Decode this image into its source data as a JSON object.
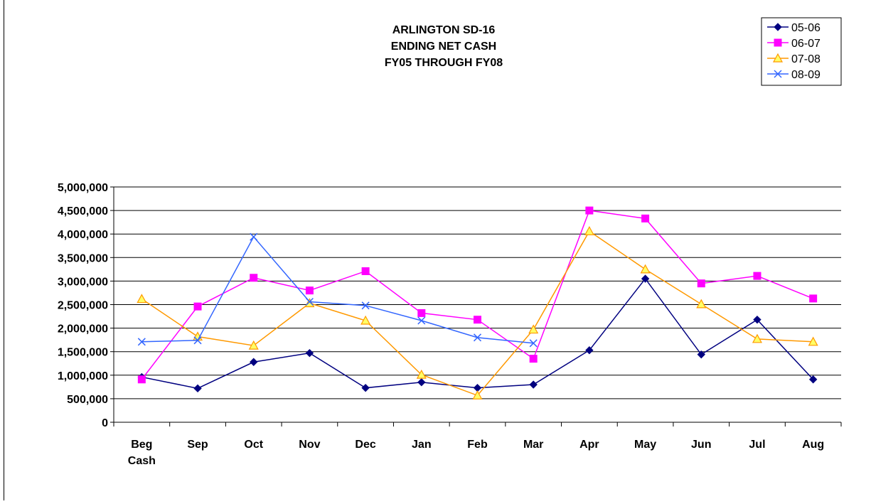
{
  "chart_data": {
    "type": "line",
    "title_lines": [
      "ARLINGTON SD-16",
      "ENDING NET CASH",
      "FY05 THROUGH FY08"
    ],
    "categories": [
      "Beg Cash",
      "Sep",
      "Oct",
      "Nov",
      "Dec",
      "Jan",
      "Feb",
      "Mar",
      "Apr",
      "May",
      "Jun",
      "Jul",
      "Aug"
    ],
    "series": [
      {
        "name": "05-06",
        "color": "#000080",
        "marker": "diamond",
        "values": [
          960000,
          720000,
          1280000,
          1470000,
          730000,
          850000,
          730000,
          800000,
          1530000,
          3050000,
          1440000,
          2180000,
          910000
        ]
      },
      {
        "name": "06-07",
        "color": "#ff00ff",
        "marker": "square",
        "values": [
          910000,
          2460000,
          3070000,
          2800000,
          3210000,
          2320000,
          2180000,
          1350000,
          4500000,
          4330000,
          2950000,
          3110000,
          2630000
        ]
      },
      {
        "name": "07-08",
        "color": "#ff9900",
        "marker": "triangle",
        "values": [
          2620000,
          1820000,
          1630000,
          2530000,
          2160000,
          1010000,
          570000,
          1970000,
          4060000,
          3250000,
          2510000,
          1770000,
          1710000
        ]
      },
      {
        "name": "08-09",
        "color": "#3366ff",
        "marker": "x",
        "values": [
          1710000,
          1740000,
          3940000,
          2560000,
          2480000,
          2160000,
          1800000,
          1680000,
          null,
          null,
          null,
          null,
          null
        ]
      }
    ],
    "ylim": [
      0,
      5000000
    ],
    "yticks": [
      0,
      {
        "value": 500000,
        "label": "500,000"
      },
      {
        "value": 1000000,
        "label": "1,000,000"
      },
      {
        "value": 1500000,
        "label": "1,500,000"
      },
      {
        "value": 2000000,
        "label": "2,000,000"
      },
      {
        "value": 2500000,
        "label": "2,500,000"
      },
      {
        "value": 3000000,
        "label": "3,000,000"
      },
      {
        "value": 3500000,
        "label": "3,500,000"
      },
      {
        "value": 4000000,
        "label": "4,000,000"
      },
      {
        "value": 4500000,
        "label": "4,500,000"
      },
      {
        "value": 5000000,
        "label": "5,000,000"
      }
    ],
    "grid": true,
    "legend": "top-right"
  }
}
